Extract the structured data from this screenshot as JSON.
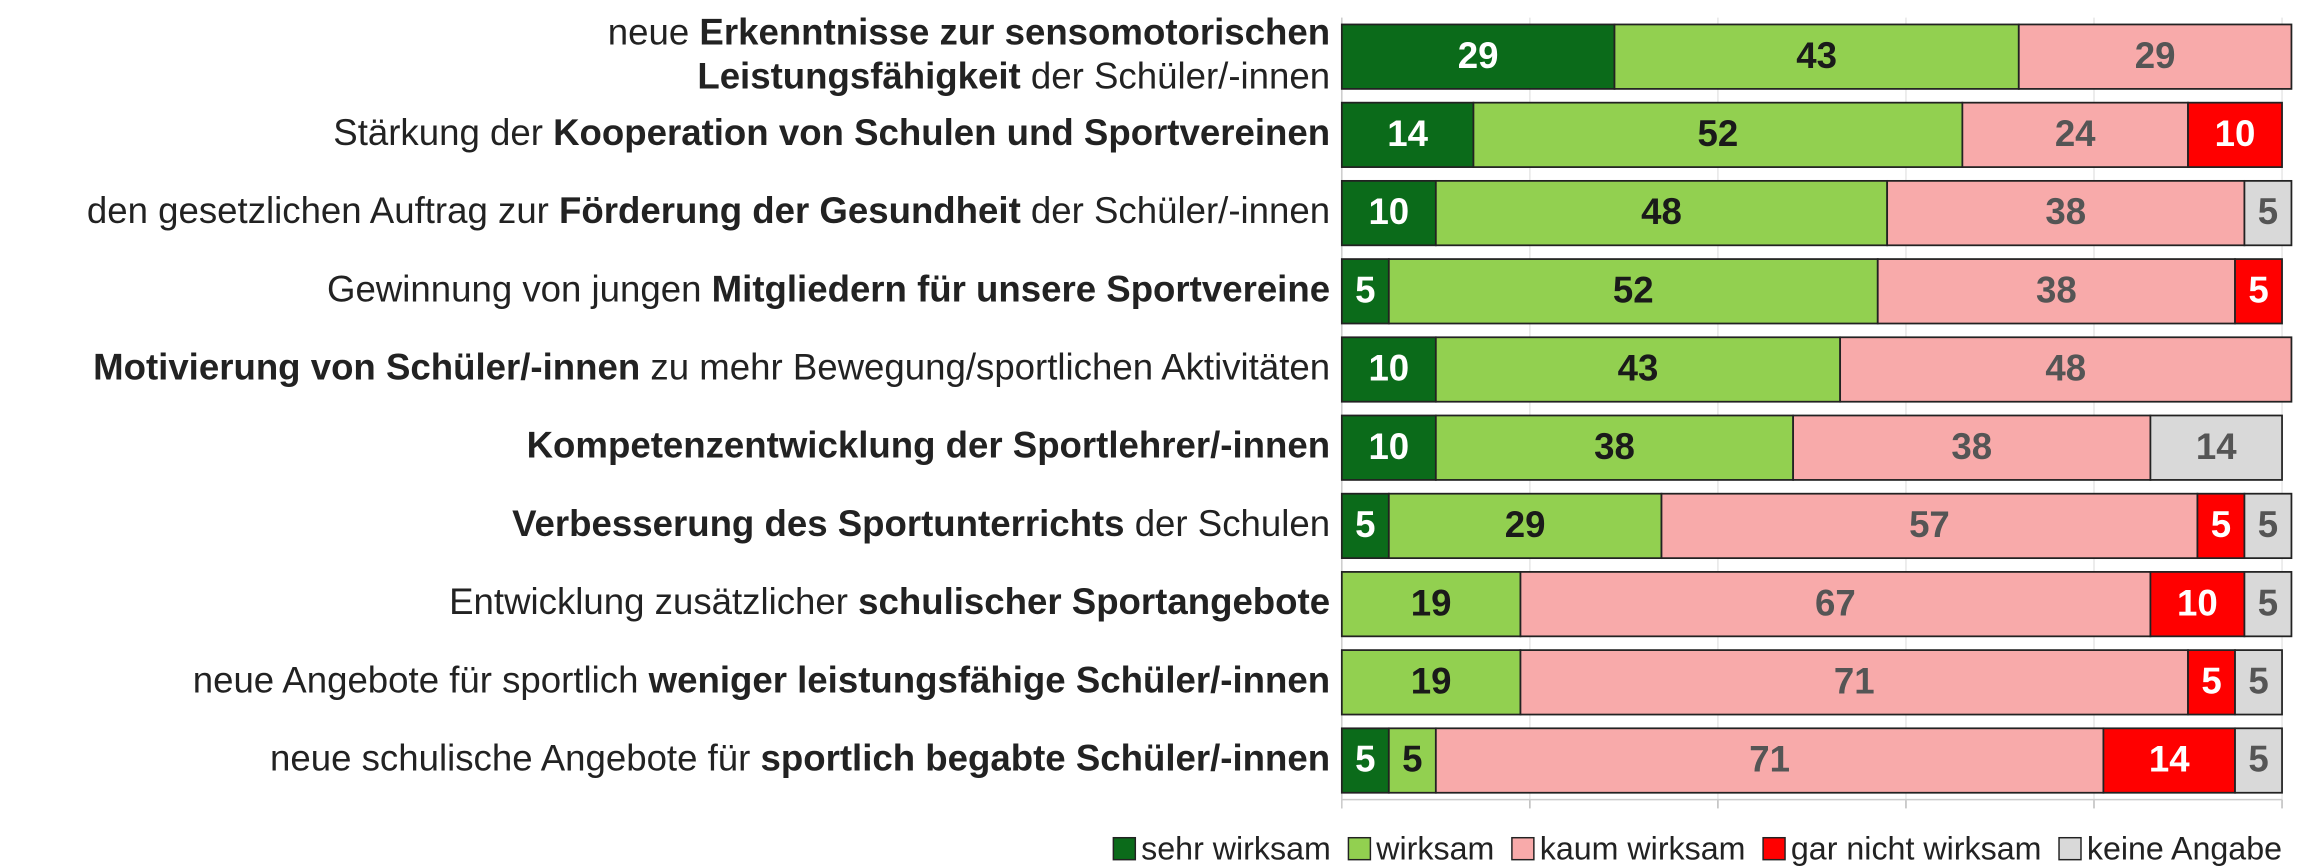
{
  "chart_data": {
    "type": "stacked_barh",
    "categories": [
      [
        {
          "text": "neue "
        },
        {
          "text": "Erkenntnisse zur sensomotorischen",
          "bold": true
        },
        {
          "text": "Leistungsfähigkeit",
          "bold": true,
          "break_before": true
        },
        {
          "text": "  der Schüler/-innen"
        }
      ],
      [
        {
          "text": "Stärkung der "
        },
        {
          "text": "Kooperation von Schulen und Sportvereinen",
          "bold": true
        }
      ],
      [
        {
          "text": "den gesetzlichen Auftrag zur "
        },
        {
          "text": "Förderung der Gesundheit",
          "bold": true
        },
        {
          "text": " der Schüler/-innen"
        }
      ],
      [
        {
          "text": "Gewinnung von jungen "
        },
        {
          "text": "Mitgliedern für unsere Sportvereine",
          "bold": true
        }
      ],
      [
        {
          "text": "Motivierung von Schüler/-innen",
          "bold": true
        },
        {
          "text": " zu mehr Bewegung/sportlichen Aktivitäten"
        }
      ],
      [
        {
          "text": "Kompetenzentwicklung der Sportlehrer/-innen",
          "bold": true
        }
      ],
      [
        {
          "text": "Verbesserung des Sportunterrichts",
          "bold": true
        },
        {
          "text": " der Schulen"
        }
      ],
      [
        {
          "text": "Entwicklung zusätzlicher "
        },
        {
          "text": "schulischer Sportangebote",
          "bold": true
        }
      ],
      [
        {
          "text": "neue Angebote für sportlich "
        },
        {
          "text": "weniger leistungsfähige Schüler/-innen",
          "bold": true
        }
      ],
      [
        {
          "text": "neue schulische Angebote für "
        },
        {
          "text": "sportlich begabte Schüler/-innen",
          "bold": true
        }
      ]
    ],
    "series": [
      {
        "name": "sehr wirksam",
        "color": "#0b6b1a",
        "label_color": "#ffffff",
        "values": [
          29,
          14,
          10,
          5,
          10,
          10,
          5,
          0,
          0,
          5
        ]
      },
      {
        "name": "wirksam",
        "color": "#92d050",
        "label_color": "#1a1a1a",
        "values": [
          43,
          52,
          48,
          52,
          43,
          38,
          29,
          19,
          19,
          5
        ]
      },
      {
        "name": "kaum wirksam",
        "color": "#f8aaaa",
        "label_color": "#555555",
        "values": [
          29,
          24,
          38,
          38,
          48,
          38,
          57,
          67,
          71,
          71
        ]
      },
      {
        "name": "gar nicht wirksam",
        "color": "#ff0000",
        "label_color": "#ffffff",
        "values": [
          0,
          10,
          0,
          5,
          0,
          0,
          5,
          10,
          5,
          14
        ]
      },
      {
        "name": "keine Angabe",
        "color": "#d9d9d9",
        "label_color": "#555555",
        "values": [
          0,
          0,
          5,
          0,
          0,
          14,
          5,
          5,
          5,
          5
        ]
      }
    ],
    "xlim": [
      0,
      100
    ],
    "xticks": [
      0,
      20,
      40,
      60,
      80,
      100
    ],
    "grid": true,
    "legend": "bottom-right"
  }
}
